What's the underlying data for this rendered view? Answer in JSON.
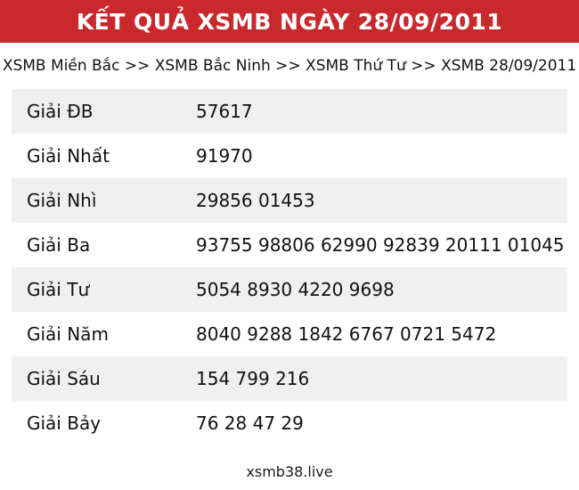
{
  "header": {
    "title": "KẾT QUẢ XSMB NGÀY 28/09/2011"
  },
  "breadcrumb": {
    "separator": ">>",
    "items": [
      "XSMB Miền Bắc",
      "XSMB Bắc Ninh",
      "XSMB Thứ Tư",
      "XSMB 28/09/2011"
    ]
  },
  "results": {
    "rows": [
      {
        "label": "Giải ĐB",
        "value": "57617"
      },
      {
        "label": "Giải Nhất",
        "value": "91970"
      },
      {
        "label": "Giải Nhì",
        "value": "29856 01453"
      },
      {
        "label": "Giải Ba",
        "value": "93755 98806 62990 92839 20111 01045"
      },
      {
        "label": "Giải Tư",
        "value": "5054 8930 4220 9698"
      },
      {
        "label": "Giải Năm",
        "value": "8040 9288 1842 6767 0721 5472"
      },
      {
        "label": "Giải Sáu",
        "value": "154 799 216"
      },
      {
        "label": "Giải Bảy",
        "value": "76 28 47 29"
      }
    ]
  },
  "footer": {
    "link_label": "xsmb38.live"
  },
  "colors": {
    "accent_red": "#C9292D",
    "row_stripe": "#F0F0F0",
    "header_text": "#FFFFFF",
    "body_text": "#111111"
  }
}
